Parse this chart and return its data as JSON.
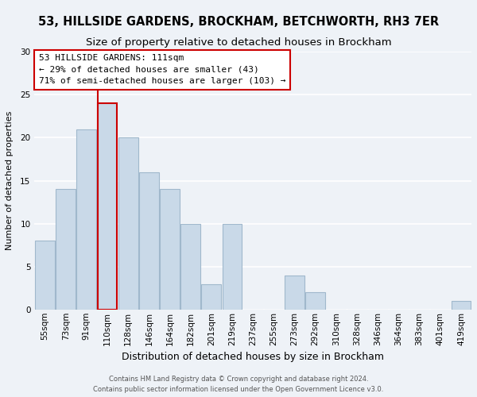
{
  "title": "53, HILLSIDE GARDENS, BROCKHAM, BETCHWORTH, RH3 7ER",
  "subtitle": "Size of property relative to detached houses in Brockham",
  "xlabel": "Distribution of detached houses by size in Brockham",
  "ylabel": "Number of detached properties",
  "footer_lines": [
    "Contains HM Land Registry data © Crown copyright and database right 2024.",
    "Contains public sector information licensed under the Open Government Licence v3.0."
  ],
  "bar_labels": [
    "55sqm",
    "73sqm",
    "91sqm",
    "110sqm",
    "128sqm",
    "146sqm",
    "164sqm",
    "182sqm",
    "201sqm",
    "219sqm",
    "237sqm",
    "255sqm",
    "273sqm",
    "292sqm",
    "310sqm",
    "328sqm",
    "346sqm",
    "364sqm",
    "383sqm",
    "401sqm",
    "419sqm"
  ],
  "bar_values": [
    8,
    14,
    21,
    24,
    20,
    16,
    14,
    10,
    3,
    10,
    0,
    0,
    4,
    2,
    0,
    0,
    0,
    0,
    0,
    0,
    1
  ],
  "bar_color": "#c9d9e8",
  "bar_edge_color": "#a0b8cc",
  "highlight_bar_index": 3,
  "highlight_edge_color": "#cc0000",
  "vline_color": "#cc0000",
  "annotation_box_text": "53 HILLSIDE GARDENS: 111sqm\n← 29% of detached houses are smaller (43)\n71% of semi-detached houses are larger (103) →",
  "annotation_box_edge_color": "#cc0000",
  "annotation_box_face_color": "#ffffff",
  "ylim": [
    0,
    30
  ],
  "yticks": [
    0,
    5,
    10,
    15,
    20,
    25,
    30
  ],
  "background_color": "#eef2f7",
  "grid_color": "#ffffff",
  "title_fontsize": 10.5,
  "subtitle_fontsize": 9.5,
  "xlabel_fontsize": 9,
  "ylabel_fontsize": 8,
  "annotation_fontsize": 8,
  "tick_fontsize": 7.5,
  "footer_fontsize": 6.0
}
